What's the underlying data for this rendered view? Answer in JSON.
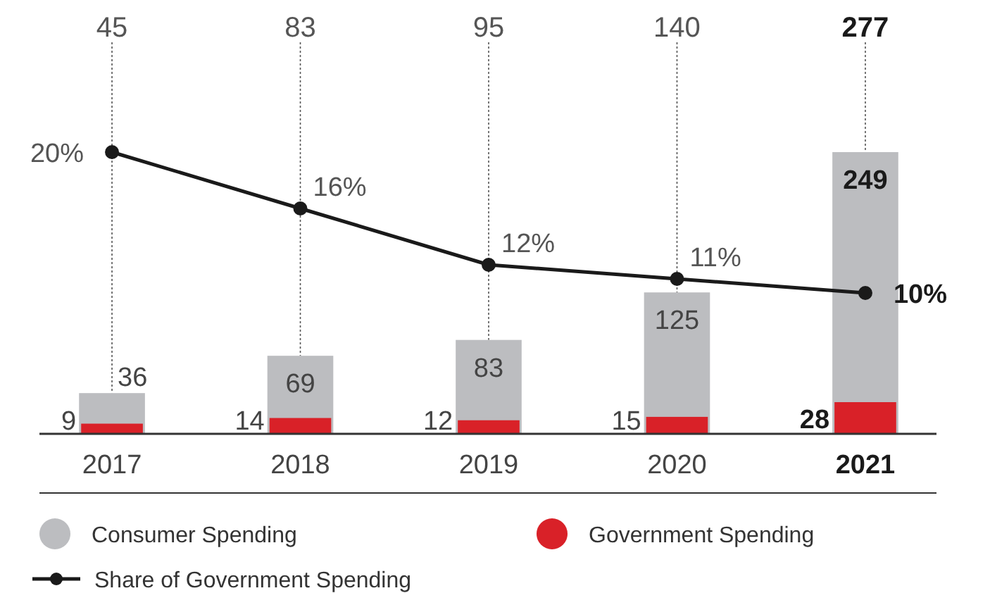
{
  "chart_data": {
    "type": "bar",
    "categories": [
      "2017",
      "2018",
      "2019",
      "2020",
      "2021"
    ],
    "series": [
      {
        "name": "Consumer Spending",
        "color": "#bcbdc0",
        "values": [
          36,
          69,
          83,
          125,
          249
        ]
      },
      {
        "name": "Government Spending",
        "color": "#d92128",
        "values": [
          9,
          14,
          12,
          15,
          28
        ]
      },
      {
        "name": "Share of Government Spending",
        "type": "line",
        "axis": "y2",
        "color": "#1a1a1a",
        "marker": "circle",
        "values": [
          20,
          16,
          12,
          11,
          10
        ],
        "value_labels": [
          "20%",
          "16%",
          "12%",
          "11%",
          "10%"
        ]
      }
    ],
    "annotations": [
      "45",
      "83",
      "95",
      "140",
      "277"
    ],
    "data_labels": true,
    "tick_labels": "x",
    "grid": "x",
    "legend": "bottom"
  }
}
